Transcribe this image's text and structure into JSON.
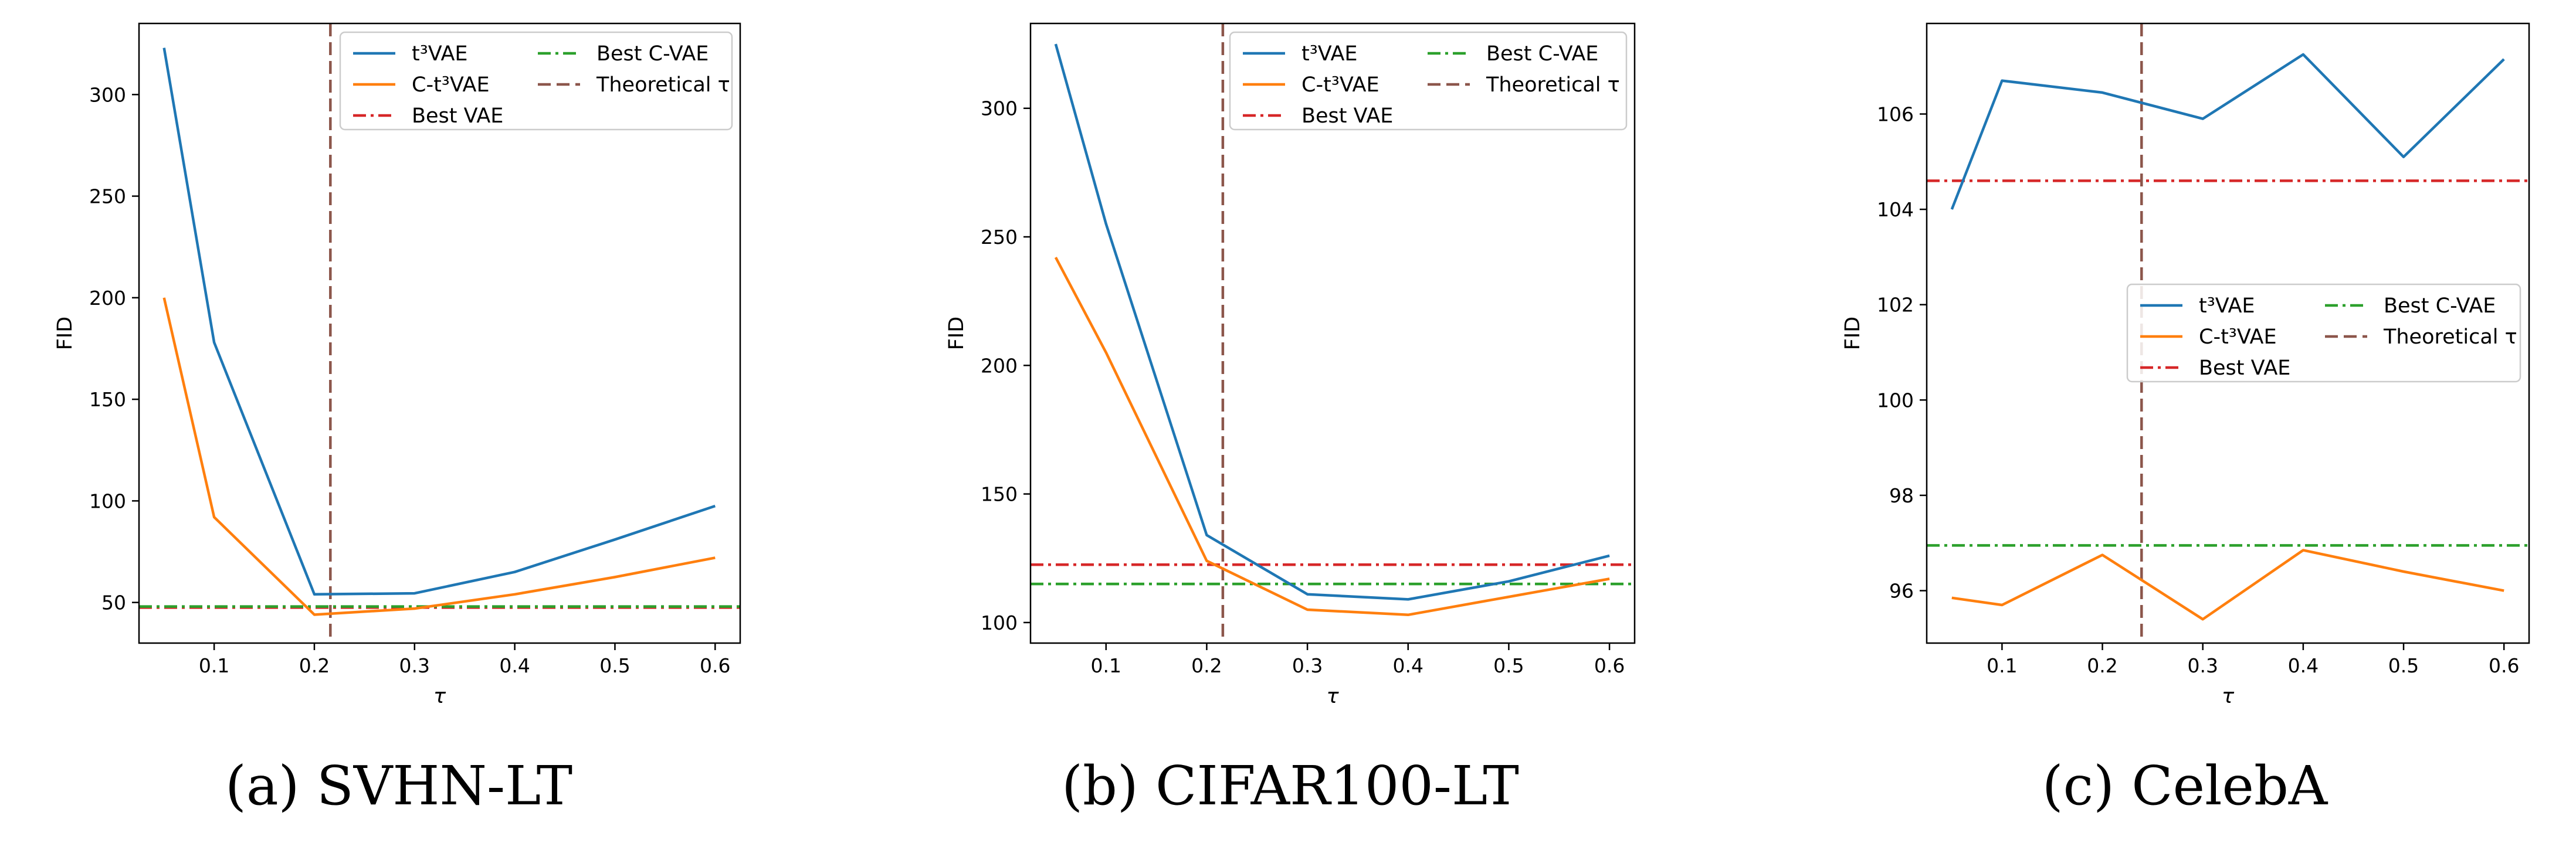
{
  "colors": {
    "t3vae": "#1f77b4",
    "ct3vae": "#ff7f0e",
    "best_vae": "#d62728",
    "best_cvae": "#2ca02c",
    "theoretical": "#8c564b"
  },
  "legend_labels": {
    "t3vae": "t³VAE",
    "ct3vae": "C-t³VAE",
    "best_vae": "Best VAE",
    "best_cvae": "Best C-VAE",
    "theoretical": "Theoretical τ"
  },
  "chart_data": [
    {
      "type": "line",
      "caption": "(a) SVHN-LT",
      "xlabel": "τ",
      "ylabel": "FID",
      "xlim": [
        0.025,
        0.625
      ],
      "ylim": [
        30,
        335
      ],
      "xticks": [
        0.1,
        0.2,
        0.3,
        0.4,
        0.5,
        0.6
      ],
      "yticks": [
        50,
        100,
        150,
        200,
        250,
        300
      ],
      "legend_position": "upper right",
      "x": [
        0.05,
        0.1,
        0.2,
        0.3,
        0.4,
        0.5,
        0.6
      ],
      "series": [
        {
          "name": "t³VAE",
          "key": "t3vae",
          "style": "solid",
          "values": [
            323,
            178,
            54,
            54.5,
            65,
            81,
            97.5
          ]
        },
        {
          "name": "C-t³VAE",
          "key": "ct3vae",
          "style": "solid",
          "values": [
            200,
            92,
            44,
            47,
            54,
            62.5,
            72
          ]
        }
      ],
      "hlines": [
        {
          "name": "Best VAE",
          "key": "best_vae",
          "style": "dashdot",
          "value": 47.5
        },
        {
          "name": "Best C-VAE",
          "key": "best_cvae",
          "style": "dashdot",
          "value": 48
        }
      ],
      "vline": {
        "name": "Theoretical τ",
        "key": "theoretical",
        "style": "dashed",
        "value": 0.216
      }
    },
    {
      "type": "line",
      "caption": "(b) CIFAR100-LT",
      "xlabel": "τ",
      "ylabel": "FID",
      "xlim": [
        0.025,
        0.625
      ],
      "ylim": [
        92,
        333
      ],
      "xticks": [
        0.1,
        0.2,
        0.3,
        0.4,
        0.5,
        0.6
      ],
      "yticks": [
        100,
        150,
        200,
        250,
        300
      ],
      "legend_position": "upper right",
      "x": [
        0.05,
        0.1,
        0.2,
        0.3,
        0.4,
        0.5,
        0.6
      ],
      "series": [
        {
          "name": "t³VAE",
          "key": "t3vae",
          "style": "solid",
          "values": [
            325,
            255,
            134,
            111,
            109,
            116,
            126
          ]
        },
        {
          "name": "C-t³VAE",
          "key": "ct3vae",
          "style": "solid",
          "values": [
            242,
            205,
            124,
            105,
            103,
            110,
            117
          ]
        }
      ],
      "hlines": [
        {
          "name": "Best VAE",
          "key": "best_vae",
          "style": "dashdot",
          "value": 122.5
        },
        {
          "name": "Best C-VAE",
          "key": "best_cvae",
          "style": "dashdot",
          "value": 115
        }
      ],
      "vline": {
        "name": "Theoretical τ",
        "key": "theoretical",
        "style": "dashed",
        "value": 0.216
      }
    },
    {
      "type": "line",
      "caption": "(c) CelebA",
      "xlabel": "τ",
      "ylabel": "FID",
      "xlim": [
        0.025,
        0.625
      ],
      "ylim": [
        94.9,
        107.9
      ],
      "xticks": [
        0.1,
        0.2,
        0.3,
        0.4,
        0.5,
        0.6
      ],
      "yticks": [
        96,
        98,
        100,
        102,
        104,
        106
      ],
      "legend_position": "center right",
      "x": [
        0.05,
        0.1,
        0.2,
        0.3,
        0.4,
        0.5,
        0.6
      ],
      "series": [
        {
          "name": "t³VAE",
          "key": "t3vae",
          "style": "solid",
          "values": [
            104.0,
            106.7,
            106.45,
            105.9,
            107.25,
            105.1,
            107.15
          ]
        },
        {
          "name": "C-t³VAE",
          "key": "ct3vae",
          "style": "solid",
          "values": [
            95.85,
            95.7,
            96.75,
            95.4,
            96.85,
            96.4,
            96.0
          ]
        }
      ],
      "hlines": [
        {
          "name": "Best VAE",
          "key": "best_vae",
          "style": "dashdot",
          "value": 104.6
        },
        {
          "name": "Best C-VAE",
          "key": "best_cvae",
          "style": "dashdot",
          "value": 96.95
        }
      ],
      "vline": {
        "name": "Theoretical τ",
        "key": "theoretical",
        "style": "dashed",
        "value": 0.239
      }
    }
  ]
}
